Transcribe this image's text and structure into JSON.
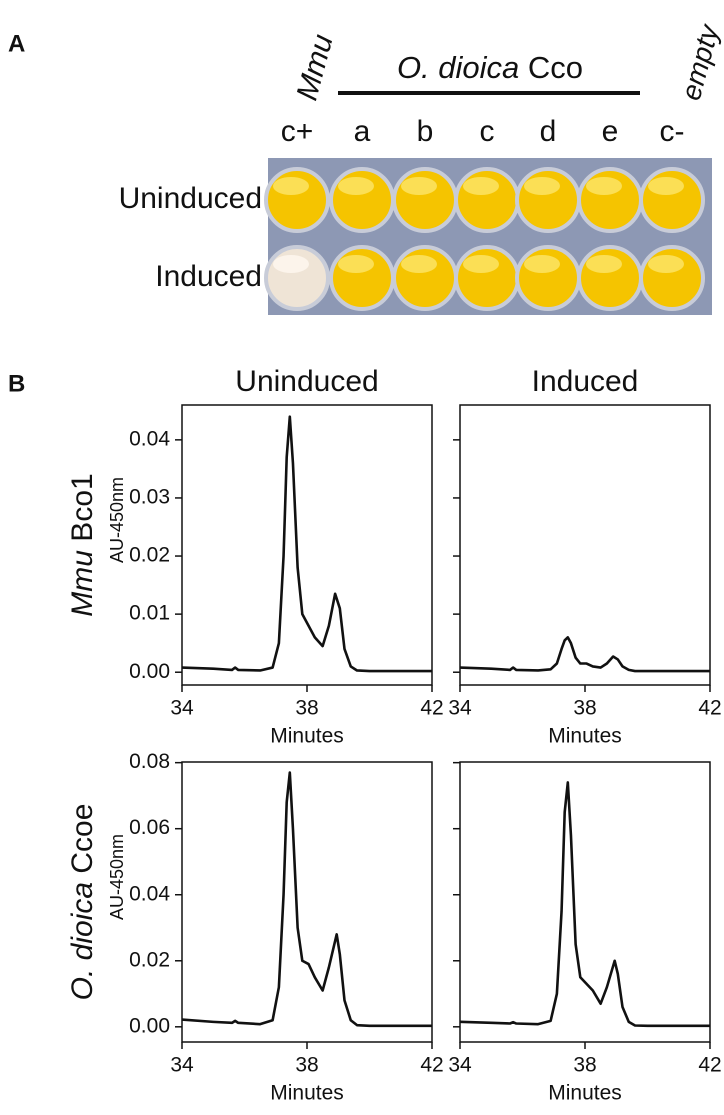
{
  "panel_a": {
    "label": "A",
    "group_left": "Mmu",
    "group_middle_italic": "O. dioica",
    "group_middle": "Cco",
    "group_right": "empty",
    "columns": [
      "c+",
      "a",
      "b",
      "c",
      "d",
      "e",
      "c-"
    ],
    "rows": [
      "Uninduced",
      "Induced"
    ]
  },
  "panel_b": {
    "label": "B"
  },
  "chart_data": [
    {
      "type": "line",
      "title": "Uninduced",
      "row_label_italic": "Mmu",
      "row_label": "Bco1",
      "ylabel": "AU-450nm",
      "xlabel": "Minutes",
      "color": "#111111",
      "x": [
        34,
        35,
        35.6,
        35.7,
        35.8,
        36.5,
        36.9,
        37.1,
        37.25,
        37.35,
        37.45,
        37.55,
        37.7,
        37.85,
        38.05,
        38.25,
        38.5,
        38.7,
        38.9,
        39.05,
        39.2,
        39.4,
        39.6,
        40,
        41,
        42
      ],
      "values": [
        0.0008,
        0.0006,
        0.0004,
        0.0008,
        0.0004,
        0.0003,
        0.0008,
        0.005,
        0.02,
        0.037,
        0.044,
        0.036,
        0.018,
        0.01,
        0.008,
        0.006,
        0.0045,
        0.008,
        0.0135,
        0.011,
        0.004,
        0.001,
        0.0003,
        0.0002,
        0.0002,
        0.0002
      ],
      "xlim": [
        34,
        42
      ],
      "xticks": [
        34,
        38,
        42
      ],
      "ylim": [
        -0.0022,
        0.046
      ],
      "yticks": [
        {
          "value": 0,
          "label": "0.00"
        },
        0.01,
        0.02,
        0.03,
        0.04
      ],
      "ytick_labels": true
    },
    {
      "type": "line",
      "title": "Induced",
      "xlabel": "Minutes",
      "color": "#111111",
      "x": [
        34,
        35,
        35.6,
        35.7,
        35.8,
        36.5,
        36.9,
        37.1,
        37.25,
        37.35,
        37.45,
        37.55,
        37.7,
        37.85,
        38.05,
        38.25,
        38.5,
        38.7,
        38.9,
        39.05,
        39.2,
        39.4,
        39.6,
        40,
        41,
        42
      ],
      "values": [
        0.0008,
        0.0006,
        0.0004,
        0.0008,
        0.0004,
        0.0003,
        0.0005,
        0.0015,
        0.004,
        0.0055,
        0.006,
        0.005,
        0.0025,
        0.0015,
        0.0015,
        0.001,
        0.0008,
        0.0015,
        0.0027,
        0.0022,
        0.001,
        0.0004,
        0.0002,
        0.0002,
        0.0002,
        0.0002
      ],
      "xlim": [
        34,
        42
      ],
      "xticks": [
        34,
        38,
        42
      ],
      "ylim": [
        -0.0022,
        0.046
      ],
      "yticks": [
        0,
        0.01,
        0.02,
        0.03,
        0.04
      ],
      "ytick_labels": false
    },
    {
      "type": "line",
      "row_label_italic": "O. dioica",
      "row_label": "Ccoe",
      "ylabel": "AU-450nm",
      "xlabel": "Minutes",
      "color": "#111111",
      "x": [
        34,
        35,
        35.6,
        35.7,
        35.8,
        36.5,
        36.9,
        37.1,
        37.25,
        37.35,
        37.45,
        37.55,
        37.7,
        37.85,
        38.05,
        38.25,
        38.5,
        38.7,
        38.95,
        39.05,
        39.2,
        39.4,
        39.6,
        40,
        41,
        42
      ],
      "values": [
        0.0022,
        0.0015,
        0.0012,
        0.0018,
        0.0012,
        0.0008,
        0.002,
        0.012,
        0.04,
        0.068,
        0.077,
        0.06,
        0.03,
        0.02,
        0.019,
        0.015,
        0.011,
        0.018,
        0.028,
        0.022,
        0.008,
        0.002,
        0.0005,
        0.0003,
        0.0003,
        0.0003
      ],
      "xlim": [
        34,
        42
      ],
      "xticks": [
        34,
        38,
        42
      ],
      "ylim": [
        -0.0046,
        0.0802
      ],
      "yticks": [
        {
          "value": 0,
          "label": "0.00"
        },
        0.02,
        0.04,
        0.06,
        0.08
      ],
      "ytick_labels": true
    },
    {
      "type": "line",
      "xlabel": "Minutes",
      "color": "#111111",
      "x": [
        34,
        35,
        35.6,
        35.7,
        35.8,
        36.5,
        36.9,
        37.1,
        37.25,
        37.35,
        37.45,
        37.55,
        37.7,
        37.85,
        38.05,
        38.25,
        38.5,
        38.7,
        38.95,
        39.05,
        39.2,
        39.4,
        39.6,
        40,
        41,
        42
      ],
      "values": [
        0.0015,
        0.0012,
        0.001,
        0.0014,
        0.001,
        0.0008,
        0.0018,
        0.01,
        0.035,
        0.065,
        0.074,
        0.058,
        0.025,
        0.015,
        0.013,
        0.011,
        0.007,
        0.012,
        0.02,
        0.016,
        0.006,
        0.0015,
        0.0004,
        0.0003,
        0.0003,
        0.0003
      ],
      "xlim": [
        34,
        42
      ],
      "xticks": [
        34,
        38,
        42
      ],
      "ylim": [
        -0.0046,
        0.0802
      ],
      "yticks": [
        0,
        0.02,
        0.04,
        0.06,
        0.08
      ],
      "ytick_labels": false
    }
  ]
}
